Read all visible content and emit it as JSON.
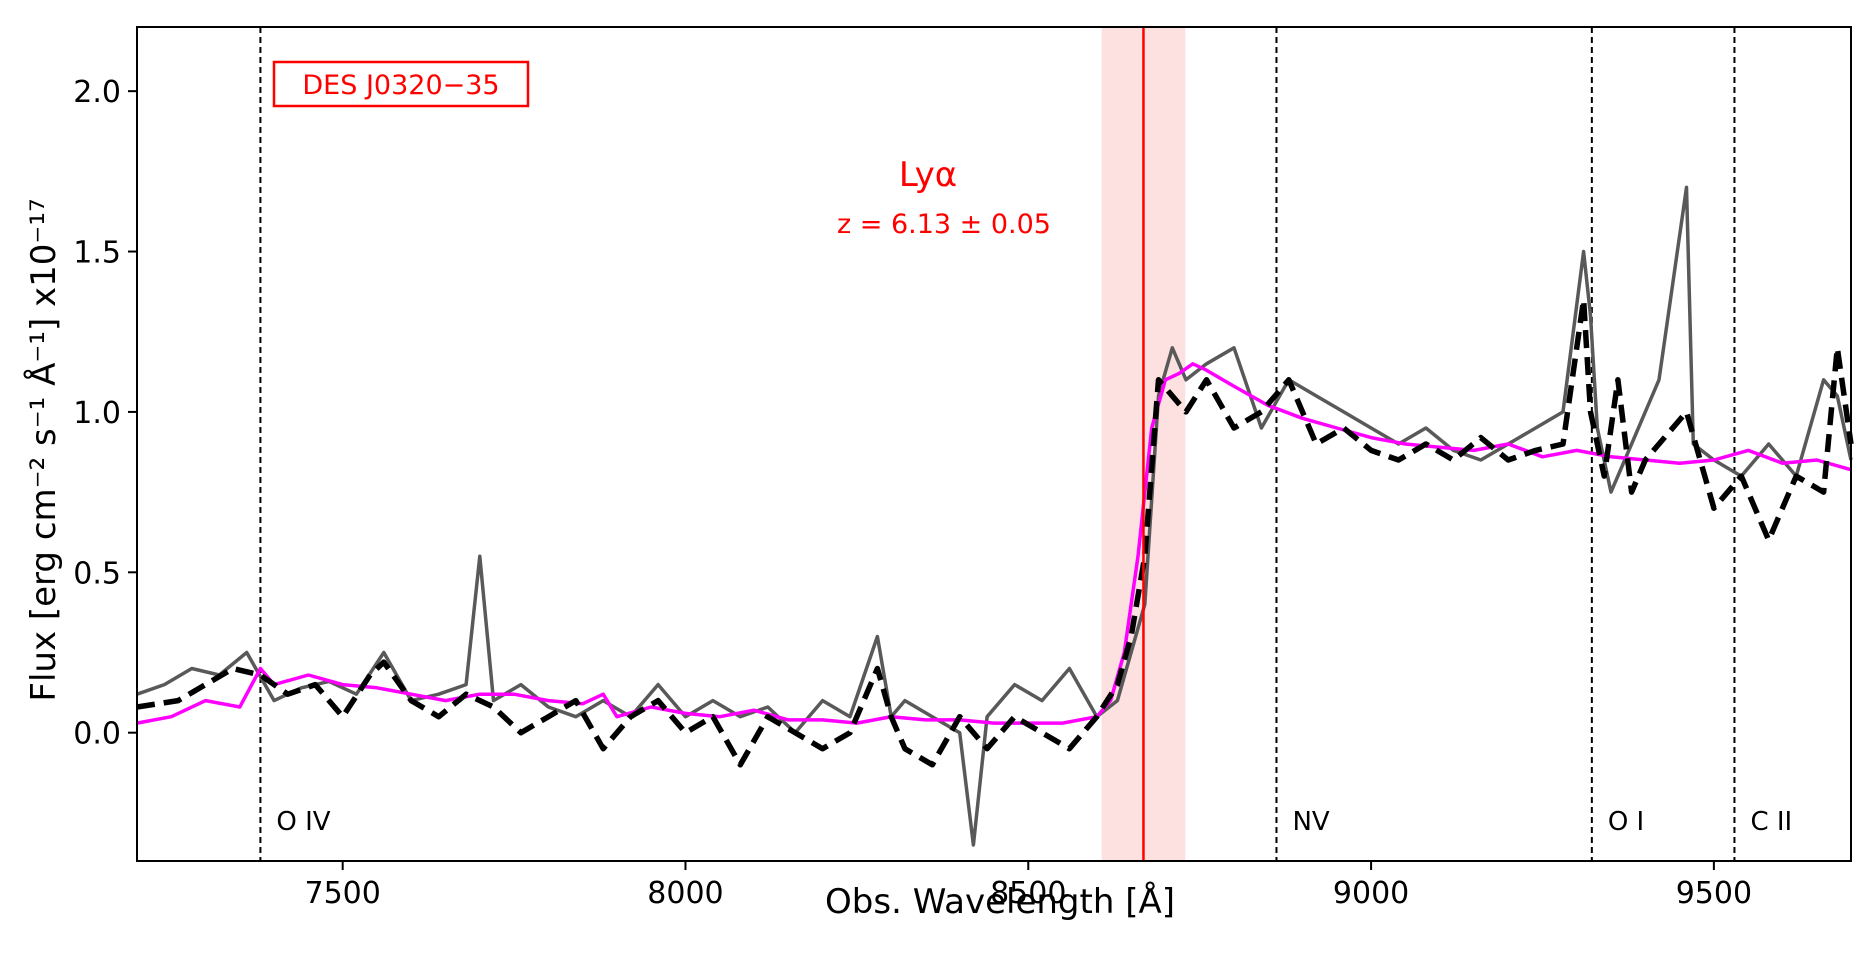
{
  "chart_data": {
    "type": "line",
    "xlabel": "Obs. Wavelength [Å]",
    "ylabel": "Flux [erg cm⁻² s⁻¹ Å⁻¹] x10⁻¹⁷",
    "xlim": [
      7200,
      9700
    ],
    "ylim": [
      -0.4,
      2.2
    ],
    "xticks": [
      7500,
      8000,
      8500,
      9000,
      9500
    ],
    "yticks": [
      0.0,
      0.5,
      1.0,
      1.5,
      2.0
    ],
    "xtick_labels": [
      "7500",
      "8000",
      "8500",
      "9000",
      "9500"
    ],
    "ytick_labels": [
      "0.0",
      "0.5",
      "1.0",
      "1.5",
      "2.0"
    ],
    "grid": false,
    "object_label": "DES J0320−35",
    "lya": {
      "label": "Lyα",
      "redshift_text": "z = 6.13 ± 0.05",
      "wavelength": 8668,
      "band": [
        8607,
        8729
      ]
    },
    "lines": [
      {
        "name": "O IV",
        "wavelength": 7380
      },
      {
        "name": "NV",
        "wavelength": 8862
      },
      {
        "name": "O I",
        "wavelength": 9322
      },
      {
        "name": "C II",
        "wavelength": 9530
      }
    ],
    "series": [
      {
        "style": "noisy",
        "x": [
          7200,
          7240,
          7280,
          7320,
          7360,
          7400,
          7440,
          7480,
          7520,
          7560,
          7600,
          7640,
          7680,
          7700,
          7720,
          7760,
          7800,
          7840,
          7880,
          7920,
          7960,
          8000,
          8040,
          8080,
          8120,
          8160,
          8200,
          8240,
          8280,
          8300,
          8320,
          8360,
          8400,
          8420,
          8440,
          8480,
          8520,
          8560,
          8600,
          8630,
          8650,
          8670,
          8690,
          8710,
          8730,
          8760,
          8800,
          8840,
          8880,
          8920,
          8960,
          9000,
          9040,
          9080,
          9120,
          9160,
          9200,
          9240,
          9280,
          9310,
          9320,
          9330,
          9350,
          9380,
          9420,
          9460,
          9470,
          9500,
          9540,
          9580,
          9620,
          9660,
          9680,
          9700
        ],
        "y": [
          0.12,
          0.15,
          0.2,
          0.18,
          0.25,
          0.1,
          0.14,
          0.16,
          0.12,
          0.25,
          0.1,
          0.12,
          0.15,
          0.55,
          0.1,
          0.15,
          0.08,
          0.05,
          0.1,
          0.05,
          0.15,
          0.05,
          0.1,
          0.05,
          0.08,
          0.0,
          0.1,
          0.05,
          0.3,
          0.05,
          0.1,
          0.05,
          0.0,
          -0.35,
          0.05,
          0.15,
          0.1,
          0.2,
          0.05,
          0.1,
          0.25,
          0.4,
          1.05,
          1.2,
          1.1,
          1.15,
          1.2,
          0.95,
          1.1,
          1.05,
          1.0,
          0.95,
          0.9,
          0.95,
          0.88,
          0.85,
          0.9,
          0.95,
          1.0,
          1.5,
          1.3,
          0.95,
          0.75,
          0.9,
          1.1,
          1.7,
          0.9,
          0.85,
          0.8,
          0.9,
          0.8,
          1.1,
          1.05,
          0.85
        ]
      },
      {
        "style": "smoothed",
        "x": [
          7200,
          7260,
          7300,
          7340,
          7380,
          7420,
          7460,
          7500,
          7540,
          7560,
          7600,
          7640,
          7680,
          7720,
          7760,
          7800,
          7840,
          7880,
          7920,
          7960,
          8000,
          8040,
          8080,
          8120,
          8160,
          8200,
          8240,
          8280,
          8300,
          8320,
          8360,
          8400,
          8440,
          8480,
          8520,
          8560,
          8600,
          8630,
          8650,
          8670,
          8690,
          8710,
          8730,
          8760,
          8800,
          8840,
          8880,
          8920,
          8960,
          9000,
          9040,
          9080,
          9120,
          9160,
          9200,
          9240,
          9280,
          9310,
          9320,
          9340,
          9360,
          9380,
          9400,
          9420,
          9460,
          9500,
          9540,
          9580,
          9620,
          9660,
          9680,
          9700
        ],
        "y": [
          0.08,
          0.1,
          0.15,
          0.2,
          0.18,
          0.12,
          0.15,
          0.05,
          0.18,
          0.22,
          0.1,
          0.05,
          0.12,
          0.08,
          0.0,
          0.05,
          0.1,
          -0.05,
          0.05,
          0.1,
          0.0,
          0.05,
          -0.1,
          0.05,
          0.0,
          -0.05,
          0.0,
          0.2,
          0.05,
          -0.05,
          -0.1,
          0.05,
          -0.05,
          0.05,
          0.0,
          -0.05,
          0.05,
          0.15,
          0.3,
          0.55,
          1.1,
          1.05,
          1.0,
          1.1,
          0.95,
          1.0,
          1.1,
          0.9,
          0.95,
          0.88,
          0.85,
          0.9,
          0.85,
          0.92,
          0.85,
          0.88,
          0.9,
          1.35,
          1.0,
          0.8,
          1.1,
          0.75,
          0.85,
          0.9,
          1.0,
          0.7,
          0.8,
          0.6,
          0.8,
          0.75,
          1.2,
          0.9
        ]
      },
      {
        "style": "template",
        "x": [
          7200,
          7250,
          7300,
          7350,
          7380,
          7400,
          7450,
          7500,
          7550,
          7600,
          7650,
          7700,
          7750,
          7800,
          7850,
          7880,
          7900,
          7950,
          8000,
          8050,
          8100,
          8150,
          8200,
          8250,
          8300,
          8350,
          8400,
          8450,
          8500,
          8550,
          8600,
          8620,
          8640,
          8660,
          8680,
          8700,
          8720,
          8740,
          8760,
          8800,
          8850,
          8900,
          8950,
          9000,
          9050,
          9100,
          9150,
          9200,
          9250,
          9300,
          9350,
          9400,
          9450,
          9500,
          9550,
          9600,
          9650,
          9700
        ],
        "y": [
          0.03,
          0.05,
          0.1,
          0.08,
          0.2,
          0.15,
          0.18,
          0.15,
          0.14,
          0.12,
          0.1,
          0.12,
          0.12,
          0.1,
          0.09,
          0.12,
          0.05,
          0.08,
          0.06,
          0.05,
          0.07,
          0.04,
          0.04,
          0.03,
          0.05,
          0.04,
          0.04,
          0.03,
          0.03,
          0.03,
          0.05,
          0.1,
          0.25,
          0.55,
          0.95,
          1.1,
          1.12,
          1.15,
          1.13,
          1.08,
          1.02,
          0.98,
          0.95,
          0.92,
          0.9,
          0.89,
          0.88,
          0.9,
          0.86,
          0.88,
          0.86,
          0.85,
          0.84,
          0.85,
          0.88,
          0.84,
          0.85,
          0.82
        ]
      }
    ]
  },
  "colors": {
    "noisy": "#595959",
    "smoothed": "#000000",
    "template": "#ff00ff",
    "accent": "#ff0000",
    "band": "#fde0e0"
  }
}
